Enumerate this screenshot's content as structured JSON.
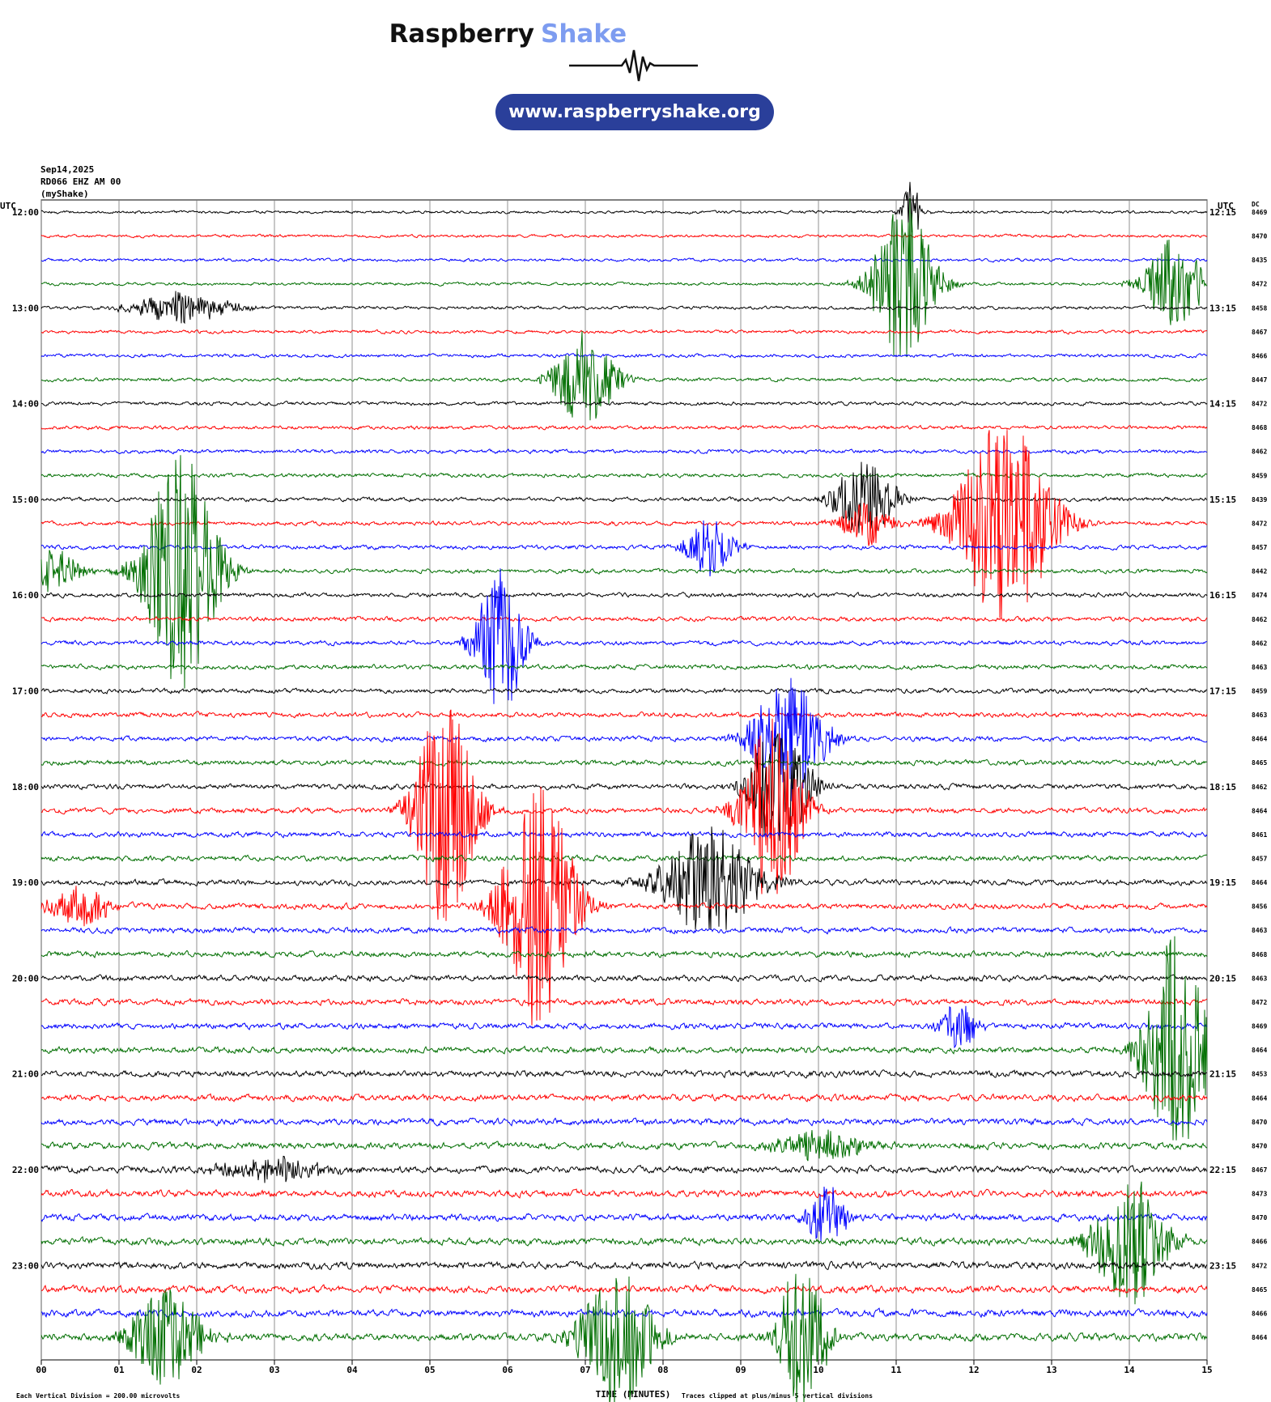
{
  "header": {
    "brand": "Raspberry",
    "brand_accent": "Shake",
    "url": "www.raspberryshake.org"
  },
  "info": {
    "date": "Sep14,2025",
    "station": "RD066 EHZ AM 00",
    "network": "(myShake)"
  },
  "left_unit": "UTC",
  "right_unit": "UTC",
  "dc_label": "DC",
  "left_times": [
    "12:00",
    "13:00",
    "14:00",
    "15:00",
    "16:00",
    "17:00",
    "18:00",
    "19:00",
    "20:00",
    "21:00",
    "22:00",
    "23:00"
  ],
  "right_times": [
    "12:15",
    "13:15",
    "14:15",
    "15:15",
    "16:15",
    "17:15",
    "18:15",
    "19:15",
    "20:15",
    "21:15",
    "22:15",
    "23:15"
  ],
  "dc_values": [
    8469,
    8470,
    8435,
    8472,
    8458,
    8467,
    8466,
    8447,
    8472,
    8468,
    8462,
    8459,
    8439,
    8472,
    8457,
    8442,
    8474,
    8462,
    8462,
    8463,
    8459,
    8463,
    8464,
    8465,
    8462,
    8464,
    8461,
    8457,
    8464,
    8456,
    8463,
    8468,
    8463,
    8472,
    8469,
    8464,
    8453,
    8464,
    8470,
    8470,
    8467,
    8473,
    8470,
    8466,
    8472,
    8465,
    8466,
    8464
  ],
  "x_labels": [
    "00",
    "01",
    "02",
    "03",
    "04",
    "05",
    "06",
    "07",
    "08",
    "09",
    "10",
    "11",
    "12",
    "13",
    "14",
    "15"
  ],
  "footer": {
    "scale": "Each Vertical Division =  200.00 microvolts",
    "axis_title": "TIME (MINUTES)",
    "clip_note": "Traces clipped at plus/minus 5 vertical divisions"
  }
}
